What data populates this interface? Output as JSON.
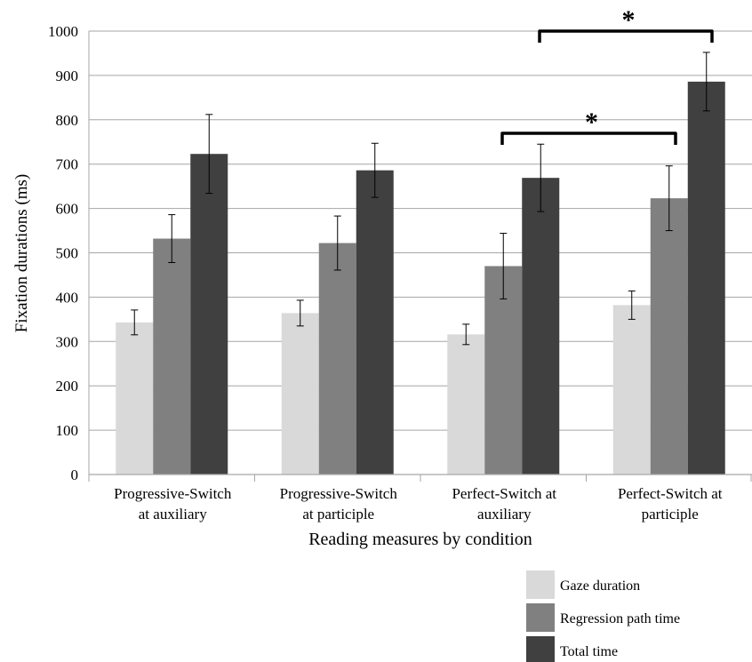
{
  "chart_data": {
    "type": "bar",
    "title": "",
    "xlabel": "Reading measures by condition",
    "ylabel": "Fixation durations (ms)",
    "ylim": [
      0,
      1000
    ],
    "yticks": [
      "0",
      "100",
      "200",
      "300",
      "400",
      "500",
      "600",
      "700",
      "800",
      "900",
      "1000"
    ],
    "grid": true,
    "legend_position": "bottom-right",
    "categories": [
      [
        "Progressive-Switch",
        "at auxiliary"
      ],
      [
        "Progressive-Switch",
        "at participle"
      ],
      [
        "Perfect-Switch at",
        "auxiliary"
      ],
      [
        "Perfect-Switch at",
        "participle"
      ]
    ],
    "series": [
      {
        "name": "Gaze duration",
        "color": "#d9d9d9",
        "values": [
          343,
          364,
          316,
          382
        ],
        "error": [
          28,
          29,
          23,
          32
        ]
      },
      {
        "name": "Regression path time",
        "color": "#808080",
        "values": [
          532,
          522,
          470,
          623
        ],
        "error": [
          54,
          61,
          74,
          73
        ]
      },
      {
        "name": "Total time",
        "color": "#404040",
        "values": [
          723,
          686,
          669,
          886
        ],
        "error": [
          89,
          61,
          76,
          66
        ]
      }
    ],
    "significance": [
      {
        "label": "*",
        "from_category": 2,
        "to_category": 3,
        "level": "lower"
      },
      {
        "label": "*",
        "from_category": 2,
        "to_category": 3,
        "level": "upper"
      }
    ]
  }
}
